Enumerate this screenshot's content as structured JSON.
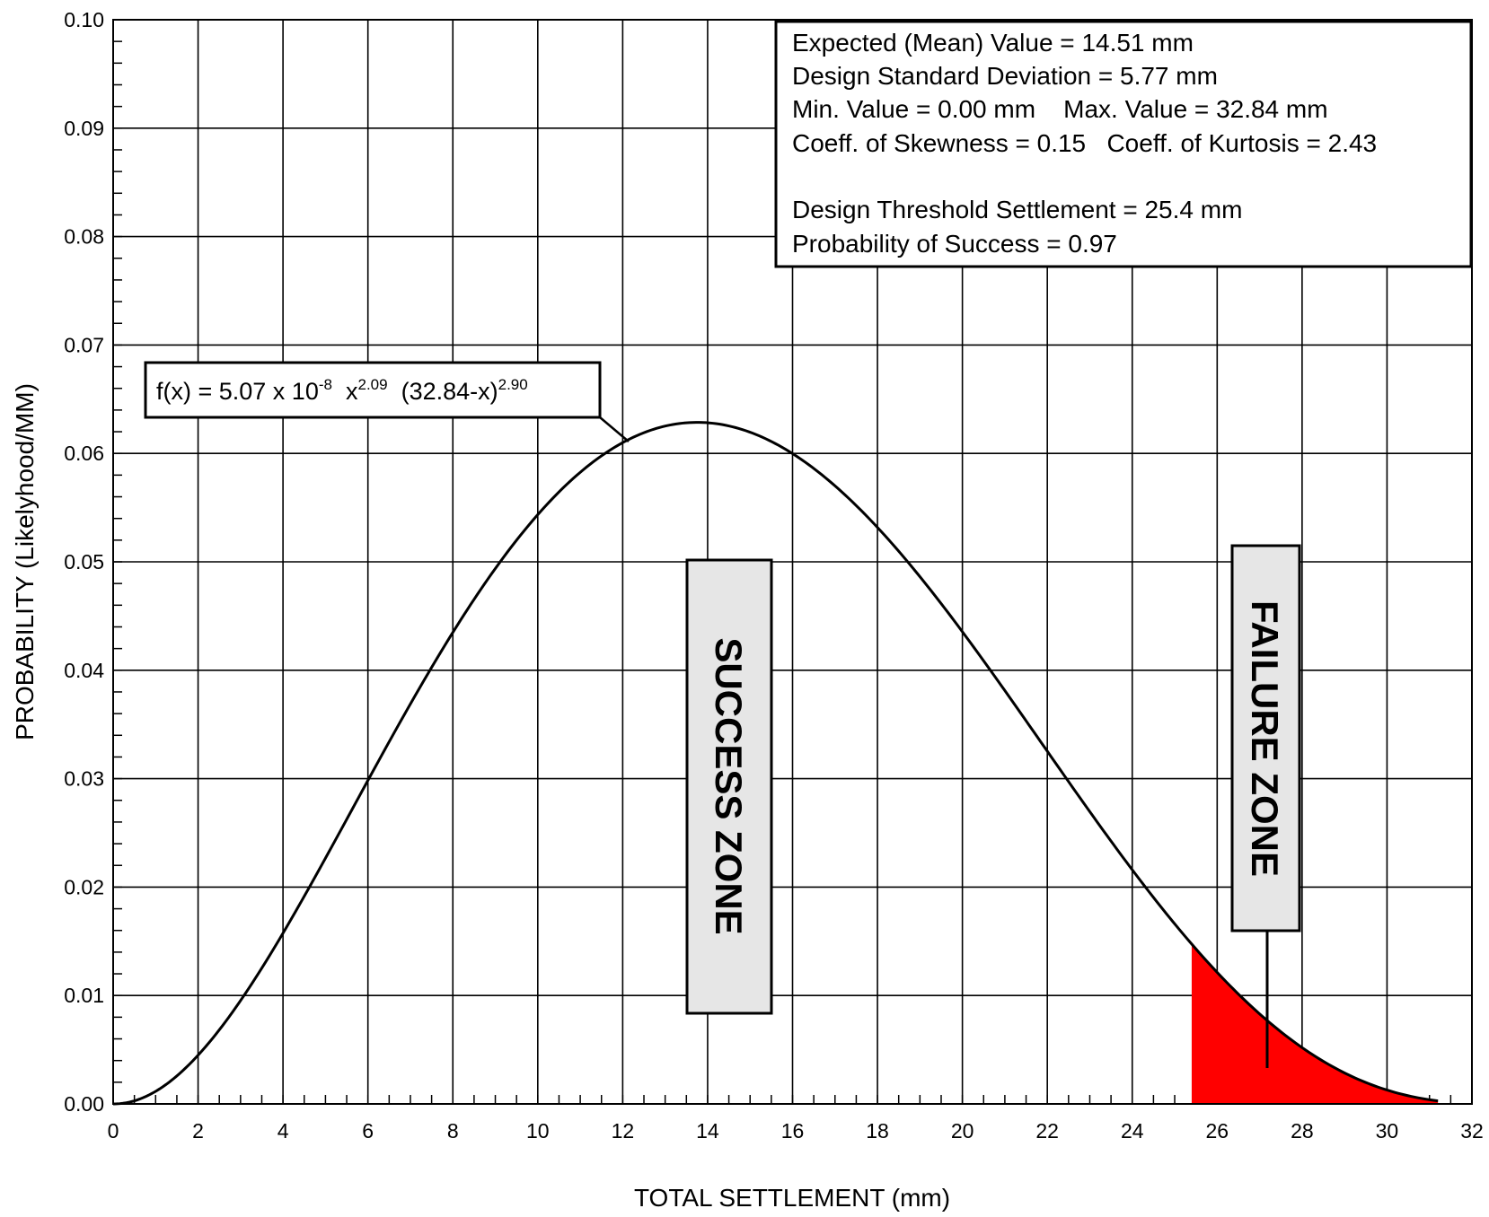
{
  "chart_data": {
    "type": "line",
    "title": "",
    "xlabel": "TOTAL SETTLEMENT (mm)",
    "ylabel": "PROBABILITY (Likelyhood/MM)",
    "xlim": [
      0,
      32
    ],
    "ylim": [
      0,
      0.1
    ],
    "grid": true,
    "x_ticks": [
      0,
      2,
      4,
      6,
      8,
      10,
      12,
      14,
      16,
      18,
      20,
      22,
      24,
      26,
      28,
      30,
      32
    ],
    "x_tick_labels": [
      "0",
      "2",
      "4",
      "6",
      "8",
      "10",
      "12",
      "14",
      "16",
      "18",
      "20",
      "22",
      "24",
      "26",
      "28",
      "30",
      "32"
    ],
    "y_ticks": [
      0,
      0.01,
      0.02,
      0.03,
      0.04,
      0.05,
      0.06,
      0.07,
      0.08,
      0.09,
      0.1
    ],
    "y_tick_labels": [
      "0.00",
      "0.01",
      "0.02",
      "0.03",
      "0.04",
      "0.05",
      "0.06",
      "0.07",
      "0.08",
      "0.09",
      "0.10"
    ],
    "distribution": {
      "coefficient": 5.07e-08,
      "alpha": 2.09,
      "beta": 2.9,
      "min": 0.0,
      "max": 32.84,
      "plot_x_end": 31.2,
      "threshold": 25.4
    },
    "stats_lines": [
      "Expected (Mean) Value = 14.51 mm",
      "Design Standard Deviation = 5.77 mm",
      "Min. Value = 0.00 mm    Max. Value = 32.84 mm",
      "Coeff. of Skewness = 0.15   Coeff. of Kurtosis = 2.43",
      "Design Threshold Settlement = 25.4 mm",
      "Probability of Success = 0.97"
    ],
    "formula": {
      "main1": "f(x) = 5.07 x 10",
      "exp1": "-8",
      "main2": "  x",
      "exp2": "2.09",
      "main3": "  (32.84-x)",
      "exp3": "2.90"
    },
    "zones": {
      "success": "SUCCESS ZONE",
      "failure": "FAILURE ZONE"
    },
    "colors": {
      "curve": "#000000",
      "failure_fill": "#ff0000",
      "zone_box_fill": "#e6e6e6",
      "grid": "#000000"
    }
  }
}
